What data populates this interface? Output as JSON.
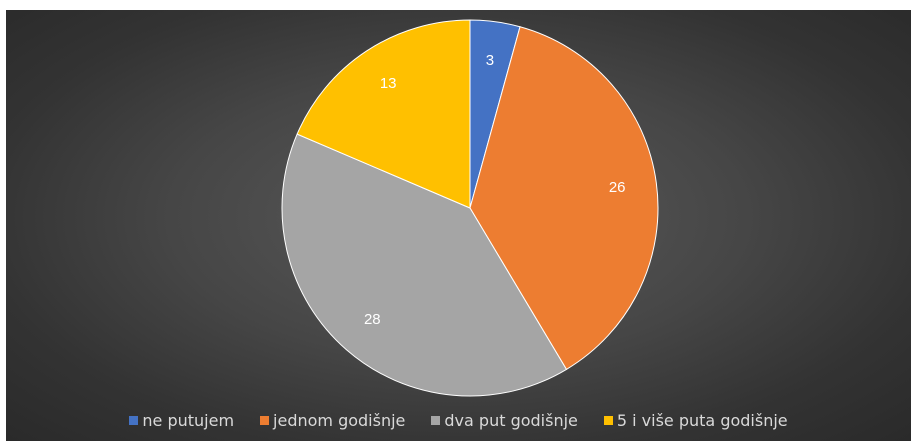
{
  "chart_data": {
    "type": "pie",
    "categories": [
      "ne putujem",
      "jednom godišnje",
      "dva put godišnje",
      "5 i više puta godišnje"
    ],
    "values": [
      3,
      26,
      28,
      13
    ],
    "colors": [
      "#4472c4",
      "#ed7d31",
      "#a5a5a5",
      "#ffc000"
    ],
    "data_labels": [
      "3",
      "26",
      "28",
      "13"
    ],
    "legend_position": "bottom",
    "background_color": "#404040"
  }
}
